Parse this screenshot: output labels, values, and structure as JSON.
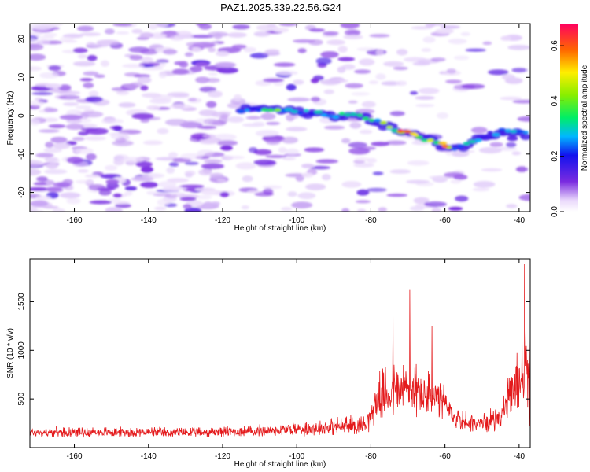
{
  "title": "PAZ1.2025.339.22.56.G24",
  "chart_data": [
    {
      "type": "heatmap",
      "xlabel": "Height of straight line (km)",
      "ylabel": "Frequency (Hz)",
      "xlim": [
        -172,
        -37
      ],
      "ylim": [
        -25,
        24
      ],
      "xticks": [
        -160,
        -140,
        -120,
        -100,
        -80,
        -60,
        -40
      ],
      "yticks": [
        -20,
        -10,
        0,
        10,
        20
      ],
      "colorbar": {
        "label": "Normalized spectral amplitude",
        "range": [
          0.0,
          0.68
        ],
        "ticks": [
          "0.0",
          "0.2",
          "0.4",
          "0.6"
        ],
        "tick_values": [
          0.0,
          0.2,
          0.4,
          0.6
        ]
      },
      "ridge": {
        "description": "signal frequency track",
        "x": [
          -115,
          -110,
          -105,
          -100,
          -95,
          -90,
          -85,
          -80,
          -75,
          -72,
          -68,
          -64,
          -60,
          -56,
          -52,
          -48,
          -44,
          -40,
          -38
        ],
        "y": [
          1.5,
          2,
          1.5,
          1,
          0.5,
          0,
          0,
          -1,
          -3,
          -4,
          -5,
          -6.5,
          -8,
          -8.5,
          -6.5,
          -5,
          -4,
          -4,
          -5
        ],
        "peak_amplitude": [
          0.25,
          0.32,
          0.42,
          0.28,
          0.3,
          0.35,
          0.32,
          0.38,
          0.45,
          0.62,
          0.5,
          0.48,
          0.58,
          0.35,
          0.3,
          0.25,
          0.3,
          0.32,
          0.25
        ]
      }
    },
    {
      "type": "line",
      "xlabel": "Height of straight line (km)",
      "ylabel": "SNR (10 * v/v)",
      "xlim": [
        -172,
        -37
      ],
      "ylim": [
        0,
        1940
      ],
      "xticks": [
        -160,
        -140,
        -120,
        -100,
        -80,
        -60,
        -40
      ],
      "yticks": [
        500,
        1000,
        1500
      ],
      "color": "#e41a1c",
      "envelope": {
        "x": [
          -172,
          -150,
          -130,
          -110,
          -100,
          -90,
          -82,
          -80,
          -78,
          -75,
          -72,
          -70,
          -68,
          -65,
          -62,
          -60,
          -58,
          -55,
          -50,
          -45,
          -42,
          -40,
          -38,
          -37
        ],
        "baseline": [
          150,
          150,
          145,
          160,
          180,
          200,
          220,
          300,
          480,
          520,
          550,
          560,
          540,
          500,
          450,
          420,
          300,
          250,
          230,
          300,
          500,
          650,
          700,
          700
        ],
        "spread": [
          90,
          95,
          95,
          110,
          140,
          170,
          200,
          260,
          400,
          550,
          550,
          650,
          500,
          450,
          400,
          330,
          250,
          200,
          170,
          250,
          450,
          650,
          900,
          1000
        ]
      },
      "peaks": [
        {
          "x": -69.5,
          "y": 1620
        },
        {
          "x": -74.0,
          "y": 1360
        },
        {
          "x": -63.5,
          "y": 1250
        },
        {
          "x": -38.5,
          "y": 1880
        }
      ]
    }
  ]
}
